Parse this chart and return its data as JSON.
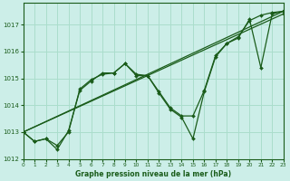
{
  "xlabel": "Graphe pression niveau de la mer (hPa)",
  "ylim": [
    1012,
    1017.8
  ],
  "xlim": [
    0,
    23
  ],
  "yticks": [
    1012,
    1013,
    1014,
    1015,
    1016,
    1017
  ],
  "xticks": [
    0,
    1,
    2,
    3,
    4,
    5,
    6,
    7,
    8,
    9,
    10,
    11,
    12,
    13,
    14,
    15,
    16,
    17,
    18,
    19,
    20,
    21,
    22,
    23
  ],
  "bg_color": "#cceee8",
  "line_color": "#1a5c1a",
  "grid_color": "#aaddcc",
  "lines": [
    {
      "x": [
        0,
        1,
        2,
        3,
        4,
        5,
        6,
        7,
        8,
        9,
        10,
        11,
        12,
        13,
        14,
        15,
        16,
        17,
        18,
        19,
        20,
        21,
        22,
        23
      ],
      "y": [
        1013.0,
        1012.65,
        1012.75,
        1012.5,
        1013.0,
        1014.6,
        1014.95,
        1015.15,
        1015.2,
        1015.55,
        1015.15,
        1015.1,
        1014.5,
        1013.9,
        1013.6,
        1013.6,
        1014.55,
        1015.85,
        1016.3,
        1016.55,
        1017.15,
        1017.35,
        1017.45,
        1017.5
      ]
    },
    {
      "x": [
        0,
        23
      ],
      "y": [
        1013.0,
        1017.5
      ]
    },
    {
      "x": [
        0,
        23
      ],
      "y": [
        1013.0,
        1017.4
      ]
    },
    {
      "x": [
        0,
        1,
        2,
        3,
        4,
        5,
        6,
        7,
        8,
        9,
        10,
        11,
        12,
        13,
        14,
        15,
        16,
        17,
        18,
        19,
        20,
        21,
        22,
        23
      ],
      "y": [
        1013.0,
        1012.65,
        1012.75,
        1012.35,
        1013.05,
        1014.55,
        1014.9,
        1015.2,
        1015.2,
        1015.55,
        1015.1,
        1015.1,
        1014.45,
        1013.85,
        1013.55,
        1012.75,
        1014.5,
        1015.8,
        1016.3,
        1016.5,
        1017.2,
        1015.4,
        1017.4,
        1017.5
      ]
    }
  ],
  "marker_size": 2.0,
  "linewidth": 0.9
}
